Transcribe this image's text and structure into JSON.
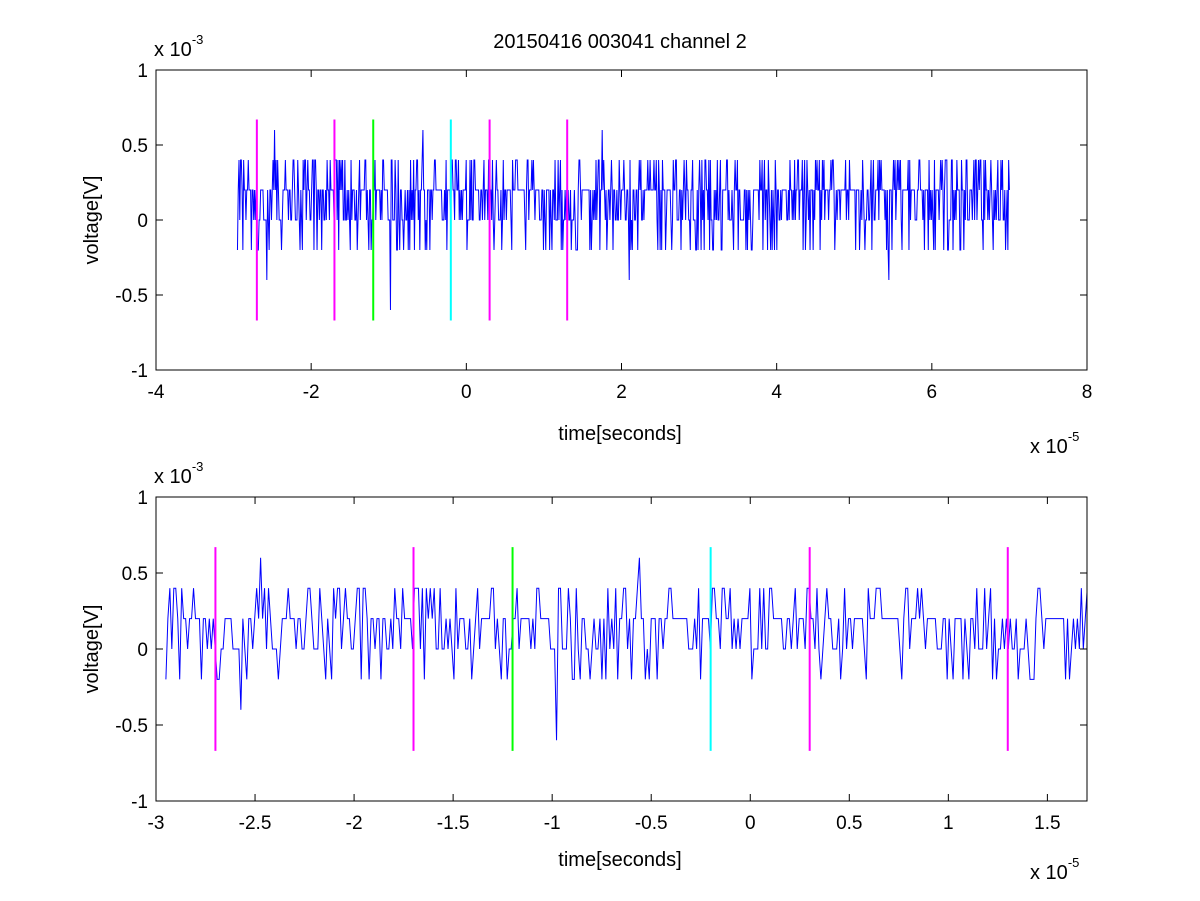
{
  "chart_data": {
    "type": "line",
    "title": "20150416 003041 channel 2",
    "colors": {
      "signal": "#0000ff",
      "magenta": "#ff00ff",
      "green": "#00ff00",
      "cyan": "#00ffff"
    },
    "markers": [
      {
        "x": -2.7e-05,
        "color": "magenta"
      },
      {
        "x": -1.7e-05,
        "color": "magenta"
      },
      {
        "x": -1.2e-05,
        "color": "green"
      },
      {
        "x": -2e-06,
        "color": "cyan"
      },
      {
        "x": 3e-06,
        "color": "magenta"
      },
      {
        "x": 1.3e-05,
        "color": "magenta"
      }
    ],
    "marker_ylim": [
      -0.00067,
      0.00067
    ],
    "signal": {
      "x_start": -2.95e-05,
      "x_end": 7e-05,
      "n_points": 1000,
      "levels": [
        -0.0006,
        -0.0004,
        -0.0002,
        0,
        0.0002,
        0.0004,
        0.0006
      ],
      "typical_range": [
        -0.0002,
        0.0004
      ],
      "extremes": [
        {
          "x": -2.57e-05,
          "y": -0.0004
        },
        {
          "x": -2.47e-05,
          "y": 0.0006
        },
        {
          "x": -9.8e-06,
          "y": -0.0006
        },
        {
          "x": -5.6e-06,
          "y": 0.0006
        },
        {
          "x": 1.75e-05,
          "y": 0.0006
        },
        {
          "x": 2.1e-05,
          "y": -0.0004
        },
        {
          "x": 5.45e-05,
          "y": -0.0004
        }
      ]
    },
    "panels": [
      {
        "id": "full",
        "xlabel": "time[seconds]",
        "ylabel": "voltage[V]",
        "xlim": [
          -4e-05,
          8e-05
        ],
        "ylim": [
          -0.001,
          0.001
        ],
        "xtick_values": [
          -4e-05,
          -2e-05,
          0,
          2e-05,
          4e-05,
          6e-05,
          8e-05
        ],
        "xtick_labels": [
          "-4",
          "-2",
          "0",
          "2",
          "4",
          "6",
          "8"
        ],
        "ytick_values": [
          -0.001,
          -0.0005,
          0,
          0.0005,
          0.001
        ],
        "ytick_labels": [
          "-1",
          "-0.5",
          "0",
          "0.5",
          "1"
        ],
        "x_exponent": {
          "base": "x 10",
          "exp": "-5"
        },
        "y_exponent": {
          "base": "x 10",
          "exp": "-3"
        }
      },
      {
        "id": "zoom",
        "xlabel": "time[seconds]",
        "ylabel": "voltage[V]",
        "xlim": [
          -3e-05,
          1.7e-05
        ],
        "ylim": [
          -0.001,
          0.001
        ],
        "xtick_values": [
          -3e-05,
          -2.5e-05,
          -2e-05,
          -1.5e-05,
          -1e-05,
          -5e-06,
          0,
          5e-06,
          1e-05,
          1.5e-05
        ],
        "xtick_labels": [
          "-3",
          "-2.5",
          "-2",
          "-1.5",
          "-1",
          "-0.5",
          "0",
          "0.5",
          "1",
          "1.5"
        ],
        "ytick_values": [
          -0.001,
          -0.0005,
          0,
          0.0005,
          0.001
        ],
        "ytick_labels": [
          "-1",
          "-0.5",
          "0",
          "0.5",
          "1"
        ],
        "x_exponent": {
          "base": "x 10",
          "exp": "-5"
        },
        "y_exponent": {
          "base": "x 10",
          "exp": "-3"
        }
      }
    ]
  }
}
